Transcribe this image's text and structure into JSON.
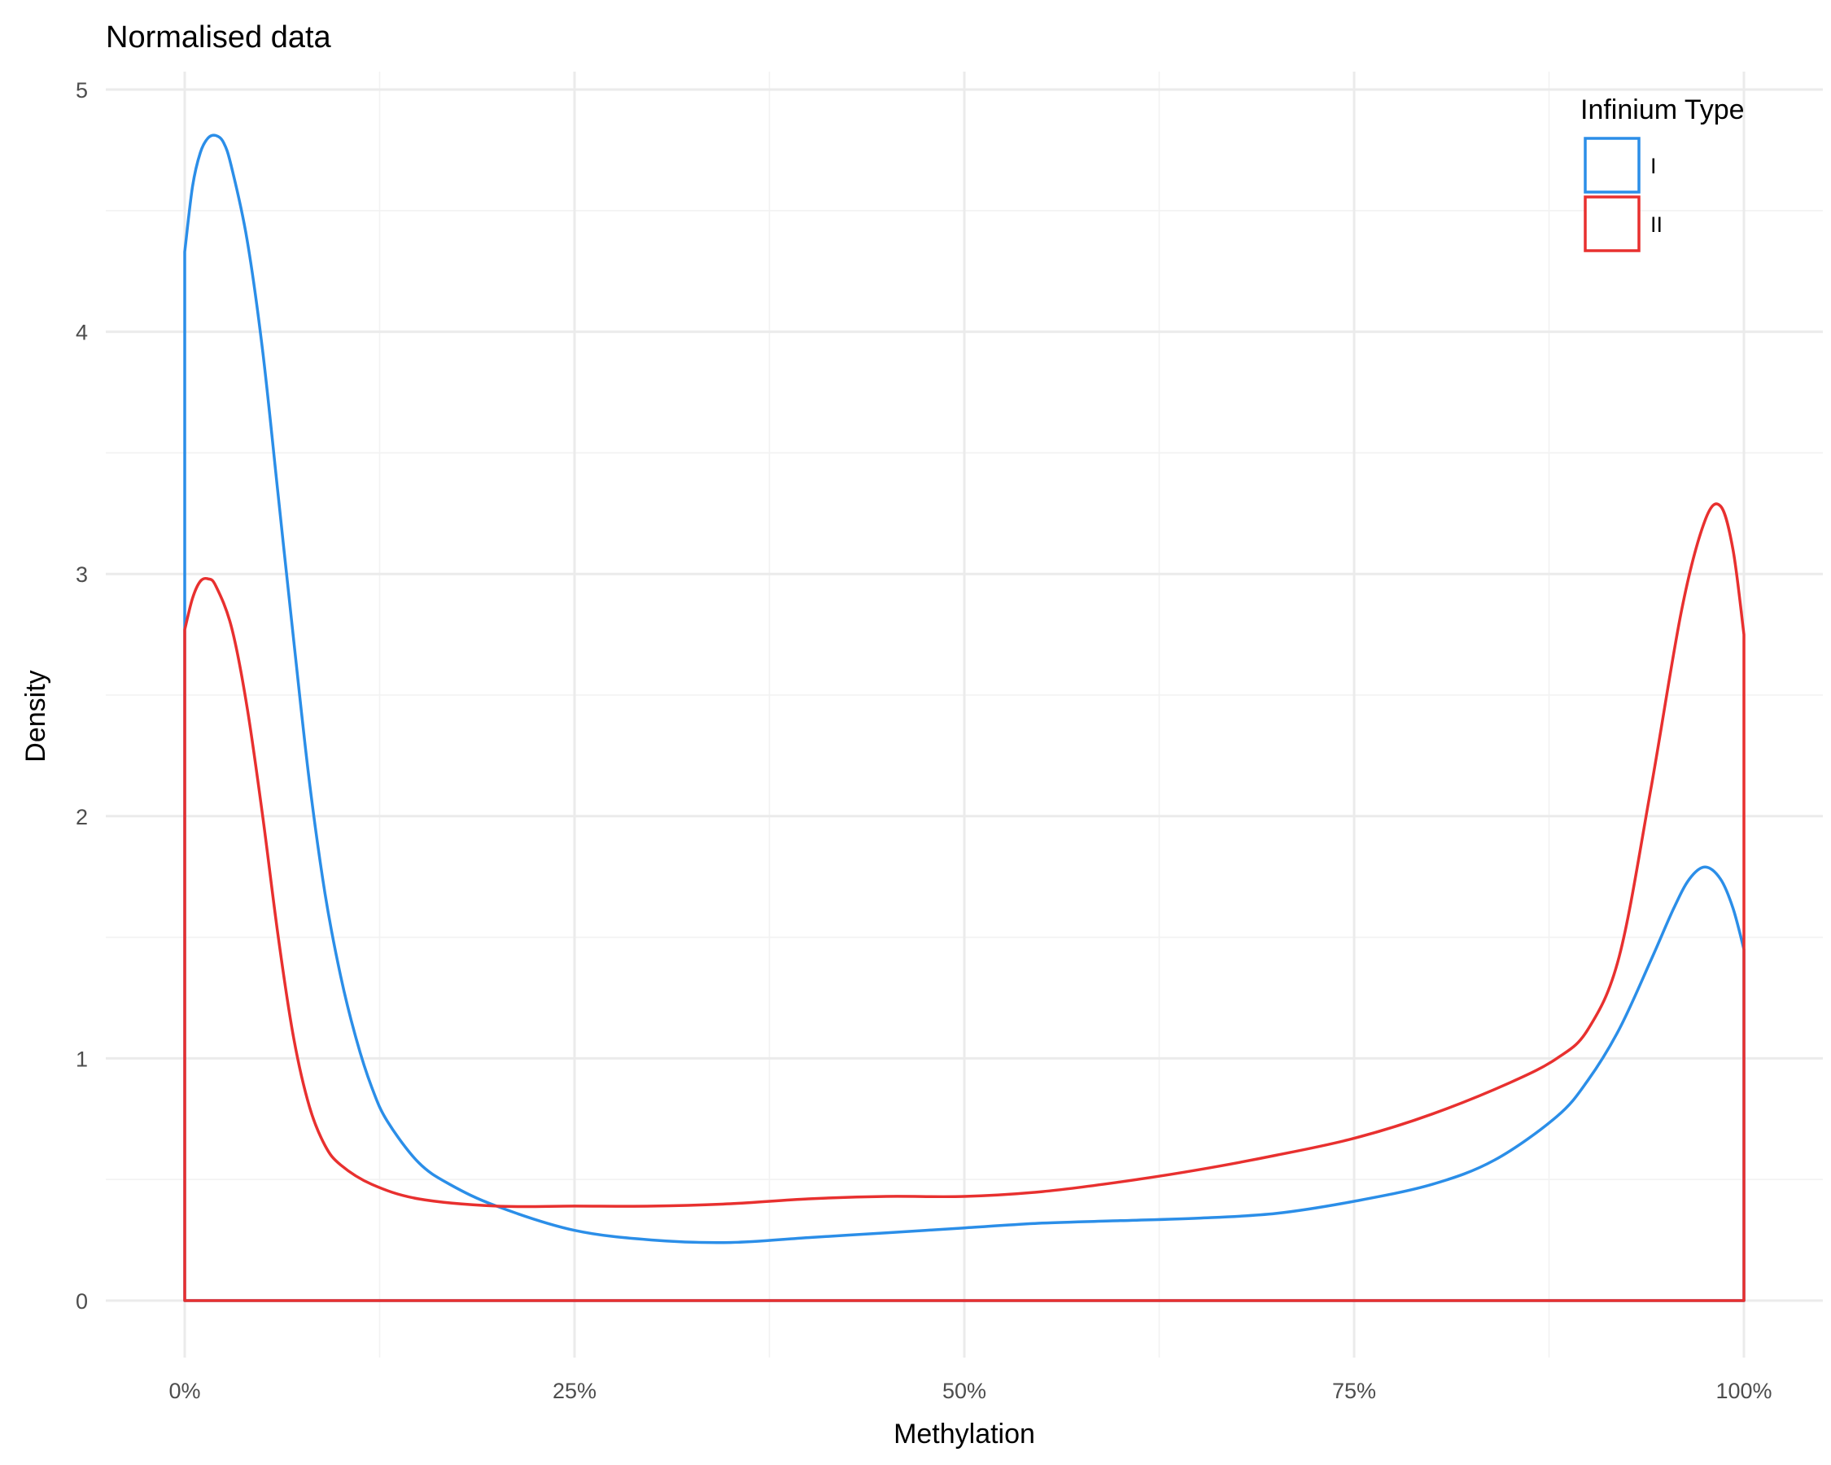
{
  "chart_data": {
    "type": "line",
    "title": "Normalised data",
    "xlabel": "Methylation",
    "ylabel": "Density",
    "xlim": [
      0,
      1
    ],
    "ylim": [
      0,
      5
    ],
    "x_ticks": [
      0,
      0.25,
      0.5,
      0.75,
      1
    ],
    "x_tick_labels": [
      "0%",
      "25%",
      "50%",
      "75%",
      "100%"
    ],
    "y_ticks": [
      0,
      1,
      2,
      3,
      4,
      5
    ],
    "y_tick_labels": [
      "0",
      "1",
      "2",
      "3",
      "4",
      "5"
    ],
    "grid": true,
    "legend": {
      "title": "Infinium Type",
      "position": "top-right"
    },
    "series": [
      {
        "name": "I",
        "color": "#2b8ee8",
        "points": [
          [
            0,
            4.33
          ],
          [
            0.005,
            4.6
          ],
          [
            0.01,
            4.74
          ],
          [
            0.015,
            4.8
          ],
          [
            0.02,
            4.81
          ],
          [
            0.025,
            4.78
          ],
          [
            0.03,
            4.68
          ],
          [
            0.04,
            4.38
          ],
          [
            0.05,
            3.92
          ],
          [
            0.06,
            3.32
          ],
          [
            0.07,
            2.72
          ],
          [
            0.08,
            2.14
          ],
          [
            0.09,
            1.68
          ],
          [
            0.1,
            1.34
          ],
          [
            0.11,
            1.08
          ],
          [
            0.12,
            0.88
          ],
          [
            0.13,
            0.74
          ],
          [
            0.15,
            0.57
          ],
          [
            0.17,
            0.48
          ],
          [
            0.2,
            0.39
          ],
          [
            0.25,
            0.29
          ],
          [
            0.3,
            0.25
          ],
          [
            0.35,
            0.24
          ],
          [
            0.4,
            0.26
          ],
          [
            0.45,
            0.28
          ],
          [
            0.5,
            0.3
          ],
          [
            0.55,
            0.32
          ],
          [
            0.6,
            0.33
          ],
          [
            0.65,
            0.34
          ],
          [
            0.7,
            0.36
          ],
          [
            0.75,
            0.41
          ],
          [
            0.8,
            0.48
          ],
          [
            0.84,
            0.58
          ],
          [
            0.88,
            0.76
          ],
          [
            0.9,
            0.91
          ],
          [
            0.92,
            1.12
          ],
          [
            0.94,
            1.4
          ],
          [
            0.955,
            1.62
          ],
          [
            0.965,
            1.74
          ],
          [
            0.975,
            1.79
          ],
          [
            0.985,
            1.74
          ],
          [
            0.993,
            1.62
          ],
          [
            1.0,
            1.45
          ]
        ]
      },
      {
        "name": "II",
        "color": "#e8302f",
        "points": [
          [
            0,
            2.77
          ],
          [
            0.005,
            2.9
          ],
          [
            0.01,
            2.97
          ],
          [
            0.015,
            2.98
          ],
          [
            0.02,
            2.95
          ],
          [
            0.03,
            2.78
          ],
          [
            0.04,
            2.45
          ],
          [
            0.05,
            2.0
          ],
          [
            0.06,
            1.5
          ],
          [
            0.07,
            1.08
          ],
          [
            0.08,
            0.8
          ],
          [
            0.09,
            0.64
          ],
          [
            0.1,
            0.56
          ],
          [
            0.12,
            0.48
          ],
          [
            0.15,
            0.42
          ],
          [
            0.2,
            0.39
          ],
          [
            0.25,
            0.39
          ],
          [
            0.3,
            0.39
          ],
          [
            0.35,
            0.4
          ],
          [
            0.4,
            0.42
          ],
          [
            0.45,
            0.43
          ],
          [
            0.5,
            0.43
          ],
          [
            0.55,
            0.45
          ],
          [
            0.6,
            0.49
          ],
          [
            0.65,
            0.54
          ],
          [
            0.7,
            0.6
          ],
          [
            0.75,
            0.67
          ],
          [
            0.8,
            0.77
          ],
          [
            0.85,
            0.9
          ],
          [
            0.88,
            1.0
          ],
          [
            0.9,
            1.12
          ],
          [
            0.92,
            1.42
          ],
          [
            0.94,
            2.1
          ],
          [
            0.96,
            2.85
          ],
          [
            0.975,
            3.22
          ],
          [
            0.985,
            3.28
          ],
          [
            0.993,
            3.1
          ],
          [
            1.0,
            2.75
          ]
        ]
      }
    ]
  }
}
